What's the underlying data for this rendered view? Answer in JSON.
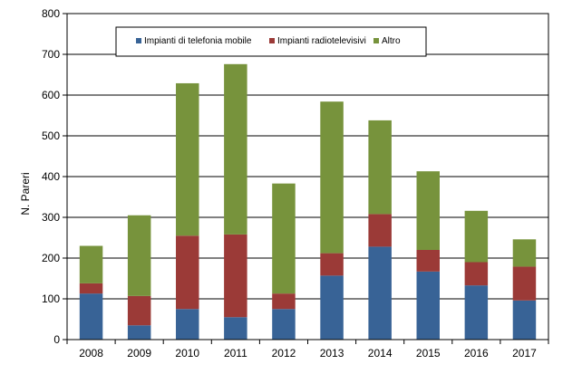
{
  "chart_data": {
    "type": "bar",
    "stacked": true,
    "title": "",
    "xlabel": "",
    "ylabel": "N. Pareri",
    "ylim": [
      0,
      800
    ],
    "ytick_step": 100,
    "grid": true,
    "legend_position": "top",
    "categories": [
      "2008",
      "2009",
      "2010",
      "2011",
      "2012",
      "2013",
      "2014",
      "2015",
      "2016",
      "2017"
    ],
    "series": [
      {
        "name": "Impianti di telefonia mobile",
        "color": "#386396",
        "values": [
          113,
          35,
          75,
          55,
          75,
          157,
          228,
          167,
          133,
          96
        ]
      },
      {
        "name": "Impianti radiotelevisivi",
        "color": "#9b3a37",
        "values": [
          25,
          72,
          180,
          203,
          38,
          55,
          80,
          53,
          57,
          83
        ]
      },
      {
        "name": "Altro",
        "color": "#77933c",
        "values": [
          92,
          198,
          374,
          418,
          270,
          372,
          230,
          193,
          126,
          67
        ]
      }
    ]
  }
}
